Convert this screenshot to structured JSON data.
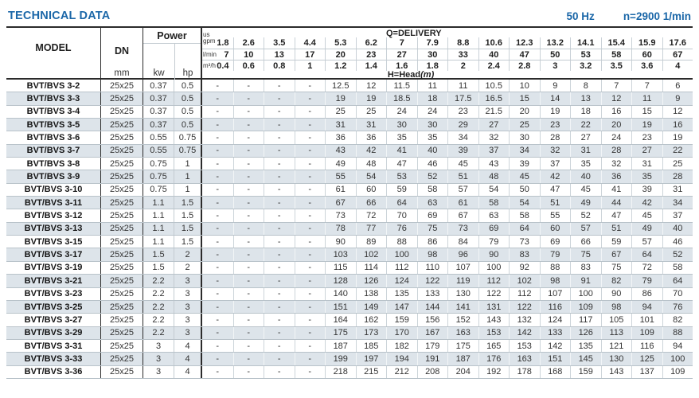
{
  "title": "TECHNICAL DATA",
  "frequency": "50 Hz",
  "speed": "n=2900 1/min",
  "table": {
    "model_header": "MODEL",
    "dn_header": "DN",
    "dn_unit": "mm",
    "power_header": "Power",
    "kw_label": "kw",
    "hp_label": "hp",
    "delivery_label": "Q=DELIVERY",
    "head_label": "H=Head",
    "head_unit": "(m)",
    "gpm_unit_lines": [
      "us",
      "gpm"
    ],
    "lmin_unit": "l/min",
    "m3h_unit": "m³/h",
    "gpm": [
      "1.8",
      "2.6",
      "3.5",
      "4.4",
      "5.3",
      "6.2",
      "7",
      "7.9",
      "8.8",
      "10.6",
      "12.3",
      "13.2",
      "14.1",
      "15.4",
      "15.9",
      "17.6"
    ],
    "lmin": [
      "7",
      "10",
      "13",
      "17",
      "20",
      "23",
      "27",
      "30",
      "33",
      "40",
      "47",
      "50",
      "53",
      "58",
      "60",
      "67"
    ],
    "m3h": [
      "0.4",
      "0.6",
      "0.8",
      "1",
      "1.2",
      "1.4",
      "1.6",
      "1.8",
      "2",
      "2.4",
      "2.8",
      "3",
      "3.2",
      "3.5",
      "3.6",
      "4"
    ],
    "rows": [
      {
        "model": "BVT/BVS 3-2",
        "dn": "25x25",
        "kw": "0.37",
        "hp": "0.5",
        "head": [
          "-",
          "-",
          "-",
          "-",
          "12.5",
          "12",
          "11.5",
          "11",
          "11",
          "10.5",
          "10",
          "9",
          "8",
          "7",
          "7",
          "6"
        ]
      },
      {
        "model": "BVT/BVS 3-3",
        "dn": "25x25",
        "kw": "0.37",
        "hp": "0.5",
        "head": [
          "-",
          "-",
          "-",
          "-",
          "19",
          "19",
          "18.5",
          "18",
          "17.5",
          "16.5",
          "15",
          "14",
          "13",
          "12",
          "11",
          "9"
        ]
      },
      {
        "model": "BVT/BVS 3-4",
        "dn": "25x25",
        "kw": "0.37",
        "hp": "0.5",
        "head": [
          "-",
          "-",
          "-",
          "-",
          "25",
          "25",
          "24",
          "24",
          "23",
          "21.5",
          "20",
          "19",
          "18",
          "16",
          "15",
          "12"
        ]
      },
      {
        "model": "BVT/BVS 3-5",
        "dn": "25x25",
        "kw": "0.37",
        "hp": "0.5",
        "head": [
          "-",
          "-",
          "-",
          "-",
          "31",
          "31",
          "30",
          "30",
          "29",
          "27",
          "25",
          "23",
          "22",
          "20",
          "19",
          "16"
        ]
      },
      {
        "model": "BVT/BVS 3-6",
        "dn": "25x25",
        "kw": "0.55",
        "hp": "0.75",
        "head": [
          "-",
          "-",
          "-",
          "-",
          "36",
          "36",
          "35",
          "35",
          "34",
          "32",
          "30",
          "28",
          "27",
          "24",
          "23",
          "19"
        ]
      },
      {
        "model": "BVT/BVS 3-7",
        "dn": "25x25",
        "kw": "0.55",
        "hp": "0.75",
        "head": [
          "-",
          "-",
          "-",
          "-",
          "43",
          "42",
          "41",
          "40",
          "39",
          "37",
          "34",
          "32",
          "31",
          "28",
          "27",
          "22"
        ]
      },
      {
        "model": "BVT/BVS 3-8",
        "dn": "25x25",
        "kw": "0.75",
        "hp": "1",
        "head": [
          "-",
          "-",
          "-",
          "-",
          "49",
          "48",
          "47",
          "46",
          "45",
          "43",
          "39",
          "37",
          "35",
          "32",
          "31",
          "25"
        ]
      },
      {
        "model": "BVT/BVS 3-9",
        "dn": "25x25",
        "kw": "0.75",
        "hp": "1",
        "head": [
          "-",
          "-",
          "-",
          "-",
          "55",
          "54",
          "53",
          "52",
          "51",
          "48",
          "45",
          "42",
          "40",
          "36",
          "35",
          "28"
        ]
      },
      {
        "model": "BVT/BVS 3-10",
        "dn": "25x25",
        "kw": "0.75",
        "hp": "1",
        "head": [
          "-",
          "-",
          "-",
          "-",
          "61",
          "60",
          "59",
          "58",
          "57",
          "54",
          "50",
          "47",
          "45",
          "41",
          "39",
          "31"
        ]
      },
      {
        "model": "BVT/BVS 3-11",
        "dn": "25x25",
        "kw": "1.1",
        "hp": "1.5",
        "head": [
          "-",
          "-",
          "-",
          "-",
          "67",
          "66",
          "64",
          "63",
          "61",
          "58",
          "54",
          "51",
          "49",
          "44",
          "42",
          "34"
        ]
      },
      {
        "model": "BVT/BVS 3-12",
        "dn": "25x25",
        "kw": "1.1",
        "hp": "1.5",
        "head": [
          "-",
          "-",
          "-",
          "-",
          "73",
          "72",
          "70",
          "69",
          "67",
          "63",
          "58",
          "55",
          "52",
          "47",
          "45",
          "37"
        ]
      },
      {
        "model": "BVT/BVS 3-13",
        "dn": "25x25",
        "kw": "1.1",
        "hp": "1.5",
        "head": [
          "-",
          "-",
          "-",
          "-",
          "78",
          "77",
          "76",
          "75",
          "73",
          "69",
          "64",
          "60",
          "57",
          "51",
          "49",
          "40"
        ]
      },
      {
        "model": "BVT/BVS 3-15",
        "dn": "25x25",
        "kw": "1.1",
        "hp": "1.5",
        "head": [
          "-",
          "-",
          "-",
          "-",
          "90",
          "89",
          "88",
          "86",
          "84",
          "79",
          "73",
          "69",
          "66",
          "59",
          "57",
          "46"
        ]
      },
      {
        "model": "BVT/BVS 3-17",
        "dn": "25x25",
        "kw": "1.5",
        "hp": "2",
        "head": [
          "-",
          "-",
          "-",
          "-",
          "103",
          "102",
          "100",
          "98",
          "96",
          "90",
          "83",
          "79",
          "75",
          "67",
          "64",
          "52"
        ]
      },
      {
        "model": "BVT/BVS 3-19",
        "dn": "25x25",
        "kw": "1.5",
        "hp": "2",
        "head": [
          "-",
          "-",
          "-",
          "-",
          "115",
          "114",
          "112",
          "110",
          "107",
          "100",
          "92",
          "88",
          "83",
          "75",
          "72",
          "58"
        ]
      },
      {
        "model": "BVT/BVS 3-21",
        "dn": "25x25",
        "kw": "2.2",
        "hp": "3",
        "head": [
          "-",
          "-",
          "-",
          "-",
          "128",
          "126",
          "124",
          "122",
          "119",
          "112",
          "102",
          "98",
          "91",
          "82",
          "79",
          "64"
        ]
      },
      {
        "model": "BVT/BVS 3-23",
        "dn": "25x25",
        "kw": "2.2",
        "hp": "3",
        "head": [
          "-",
          "-",
          "-",
          "-",
          "140",
          "138",
          "135",
          "133",
          "130",
          "122",
          "112",
          "107",
          "100",
          "90",
          "86",
          "70"
        ]
      },
      {
        "model": "BVT/BVS 3-25",
        "dn": "25x25",
        "kw": "2.2",
        "hp": "3",
        "head": [
          "-",
          "-",
          "-",
          "-",
          "151",
          "149",
          "147",
          "144",
          "141",
          "131",
          "122",
          "116",
          "109",
          "98",
          "94",
          "76"
        ]
      },
      {
        "model": "BVT/BVS 3-27",
        "dn": "25x25",
        "kw": "2.2",
        "hp": "3",
        "head": [
          "-",
          "-",
          "-",
          "-",
          "164",
          "162",
          "159",
          "156",
          "152",
          "143",
          "132",
          "124",
          "117",
          "105",
          "101",
          "82"
        ]
      },
      {
        "model": "BVT/BVS 3-29",
        "dn": "25x25",
        "kw": "2.2",
        "hp": "3",
        "head": [
          "-",
          "-",
          "-",
          "-",
          "175",
          "173",
          "170",
          "167",
          "163",
          "153",
          "142",
          "133",
          "126",
          "113",
          "109",
          "88"
        ]
      },
      {
        "model": "BVT/BVS 3-31",
        "dn": "25x25",
        "kw": "3",
        "hp": "4",
        "head": [
          "-",
          "-",
          "-",
          "-",
          "187",
          "185",
          "182",
          "179",
          "175",
          "165",
          "153",
          "142",
          "135",
          "121",
          "116",
          "94"
        ]
      },
      {
        "model": "BVT/BVS 3-33",
        "dn": "25x25",
        "kw": "3",
        "hp": "4",
        "head": [
          "-",
          "-",
          "-",
          "-",
          "199",
          "197",
          "194",
          "191",
          "187",
          "176",
          "163",
          "151",
          "145",
          "130",
          "125",
          "100"
        ]
      },
      {
        "model": "BVT/BVS 3-36",
        "dn": "25x25",
        "kw": "3",
        "hp": "4",
        "head": [
          "-",
          "-",
          "-",
          "-",
          "218",
          "215",
          "212",
          "208",
          "204",
          "192",
          "178",
          "168",
          "159",
          "143",
          "137",
          "109"
        ]
      }
    ]
  }
}
